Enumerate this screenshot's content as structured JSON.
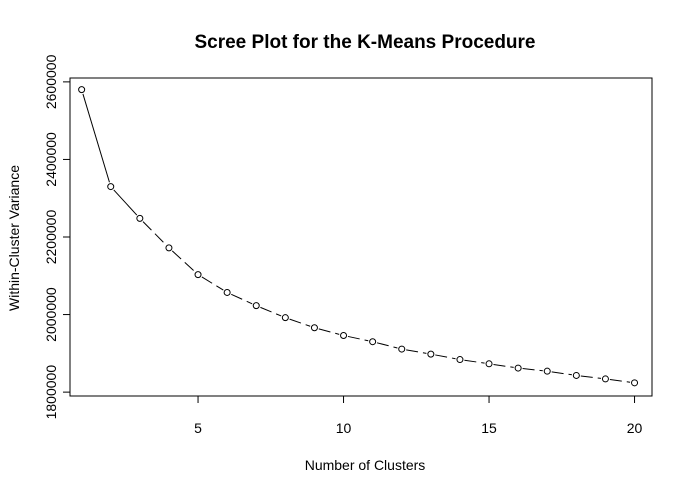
{
  "chart_data": {
    "type": "line",
    "title": "Scree Plot for the K-Means Procedure",
    "xlabel": "Number of Clusters",
    "ylabel": "Within-Cluster Variance",
    "x": [
      1,
      2,
      3,
      4,
      5,
      6,
      7,
      8,
      9,
      10,
      11,
      12,
      13,
      14,
      15,
      16,
      17,
      18,
      19,
      20
    ],
    "series": [
      {
        "values": [
          2580000,
          2330000,
          2248000,
          2172000,
          2103000,
          2057000,
          2023000,
          1992000,
          1966000,
          1946000,
          1930000,
          1911000,
          1898000,
          1884000,
          1873000,
          1862000,
          1854000,
          1843000,
          1834000,
          1824000
        ],
        "color": "#000000",
        "marker": "open-circle",
        "line_style": "dashed"
      }
    ],
    "xlim": [
      0.6,
      20.6
    ],
    "ylim": [
      1790000,
      2610000
    ],
    "xticks": [
      5,
      10,
      15,
      20
    ],
    "xtick_labels": [
      "5",
      "10",
      "15",
      "20"
    ],
    "yticks": [
      1800000,
      2000000,
      2200000,
      2400000,
      2600000
    ],
    "ytick_labels": [
      "1800000",
      "2000000",
      "2200000",
      "2400000",
      "2600000"
    ],
    "grid": false,
    "legend": "none"
  }
}
